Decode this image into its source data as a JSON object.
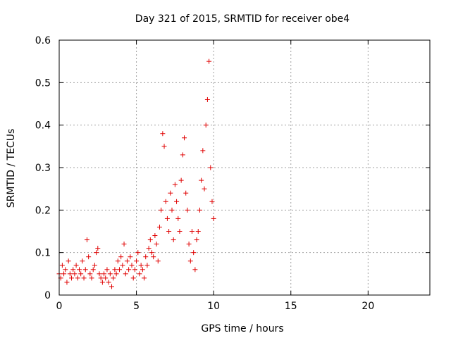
{
  "chart_data": {
    "type": "scatter",
    "title": "Day 321 of 2015, SRMTID for receiver obe4",
    "xlabel": "GPS time / hours",
    "ylabel": "SRMTID / TECUs",
    "xlim": [
      0,
      24
    ],
    "ylim": [
      0,
      0.6
    ],
    "x_ticks": [
      0,
      5,
      10,
      15,
      20
    ],
    "y_ticks": [
      0,
      0.1,
      0.2,
      0.3,
      0.4,
      0.5,
      0.6
    ],
    "x_tick_labels": [
      "0",
      "5",
      "10",
      "15",
      "20"
    ],
    "y_tick_labels": [
      "0",
      "0.1",
      "0.2",
      "0.3",
      "0.4",
      "0.5",
      "0.6"
    ],
    "grid": true,
    "marker": "+",
    "series": [
      {
        "name": "obe4",
        "color": "#e00000",
        "points": [
          [
            0.0,
            0.05
          ],
          [
            0.1,
            0.04
          ],
          [
            0.2,
            0.07
          ],
          [
            0.3,
            0.05
          ],
          [
            0.4,
            0.06
          ],
          [
            0.5,
            0.03
          ],
          [
            0.6,
            0.08
          ],
          [
            0.7,
            0.05
          ],
          [
            0.8,
            0.04
          ],
          [
            0.9,
            0.06
          ],
          [
            1.0,
            0.05
          ],
          [
            1.1,
            0.07
          ],
          [
            1.2,
            0.04
          ],
          [
            1.3,
            0.06
          ],
          [
            1.4,
            0.05
          ],
          [
            1.5,
            0.08
          ],
          [
            1.6,
            0.04
          ],
          [
            1.7,
            0.06
          ],
          [
            1.8,
            0.13
          ],
          [
            1.9,
            0.09
          ],
          [
            2.0,
            0.05
          ],
          [
            2.1,
            0.04
          ],
          [
            2.2,
            0.06
          ],
          [
            2.3,
            0.07
          ],
          [
            2.4,
            0.1
          ],
          [
            2.5,
            0.11
          ],
          [
            2.6,
            0.05
          ],
          [
            2.7,
            0.04
          ],
          [
            2.8,
            0.03
          ],
          [
            2.9,
            0.05
          ],
          [
            3.0,
            0.04
          ],
          [
            3.1,
            0.06
          ],
          [
            3.2,
            0.03
          ],
          [
            3.3,
            0.05
          ],
          [
            3.4,
            0.02
          ],
          [
            3.5,
            0.04
          ],
          [
            3.6,
            0.06
          ],
          [
            3.7,
            0.05
          ],
          [
            3.8,
            0.08
          ],
          [
            3.9,
            0.06
          ],
          [
            4.0,
            0.09
          ],
          [
            4.1,
            0.07
          ],
          [
            4.2,
            0.12
          ],
          [
            4.3,
            0.05
          ],
          [
            4.4,
            0.08
          ],
          [
            4.5,
            0.06
          ],
          [
            4.6,
            0.09
          ],
          [
            4.7,
            0.07
          ],
          [
            4.8,
            0.04
          ],
          [
            4.9,
            0.06
          ],
          [
            5.0,
            0.08
          ],
          [
            5.1,
            0.1
          ],
          [
            5.2,
            0.05
          ],
          [
            5.3,
            0.07
          ],
          [
            5.4,
            0.06
          ],
          [
            5.5,
            0.04
          ],
          [
            5.6,
            0.09
          ],
          [
            5.7,
            0.07
          ],
          [
            5.8,
            0.11
          ],
          [
            5.9,
            0.13
          ],
          [
            6.0,
            0.1
          ],
          [
            6.1,
            0.09
          ],
          [
            6.2,
            0.14
          ],
          [
            6.3,
            0.12
          ],
          [
            6.4,
            0.08
          ],
          [
            6.5,
            0.16
          ],
          [
            6.6,
            0.2
          ],
          [
            6.7,
            0.38
          ],
          [
            6.8,
            0.35
          ],
          [
            6.9,
            0.22
          ],
          [
            7.0,
            0.18
          ],
          [
            7.1,
            0.15
          ],
          [
            7.2,
            0.24
          ],
          [
            7.3,
            0.2
          ],
          [
            7.4,
            0.13
          ],
          [
            7.5,
            0.26
          ],
          [
            7.6,
            0.22
          ],
          [
            7.7,
            0.18
          ],
          [
            7.8,
            0.15
          ],
          [
            7.9,
            0.27
          ],
          [
            8.0,
            0.33
          ],
          [
            8.1,
            0.37
          ],
          [
            8.2,
            0.24
          ],
          [
            8.3,
            0.2
          ],
          [
            8.4,
            0.12
          ],
          [
            8.5,
            0.08
          ],
          [
            8.6,
            0.15
          ],
          [
            8.7,
            0.1
          ],
          [
            8.8,
            0.06
          ],
          [
            8.9,
            0.13
          ],
          [
            9.0,
            0.15
          ],
          [
            9.1,
            0.2
          ],
          [
            9.2,
            0.27
          ],
          [
            9.3,
            0.34
          ],
          [
            9.4,
            0.25
          ],
          [
            9.5,
            0.4
          ],
          [
            9.6,
            0.46
          ],
          [
            9.7,
            0.55
          ],
          [
            9.8,
            0.3
          ],
          [
            9.9,
            0.22
          ],
          [
            10.0,
            0.18
          ]
        ]
      }
    ]
  }
}
